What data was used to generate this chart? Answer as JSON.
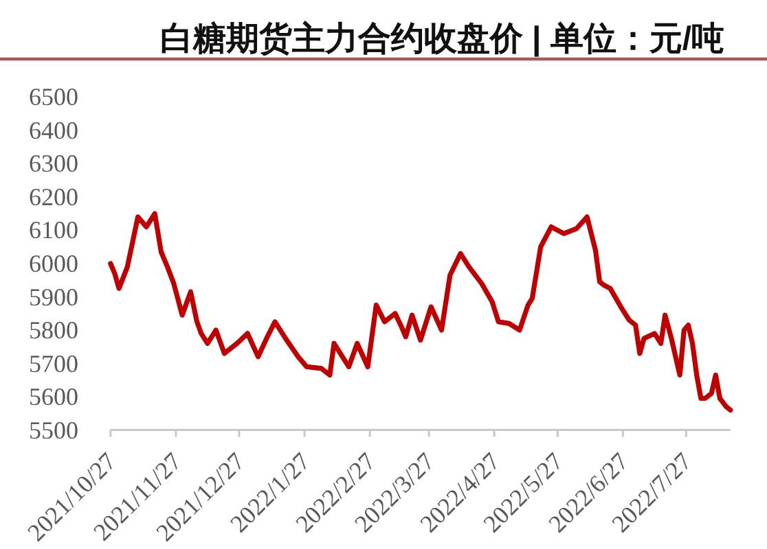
{
  "chart_data": {
    "type": "line",
    "title": "白糖期货主力合约收盘价 | 单位：元/吨",
    "x": [
      "2021-10-27",
      "2021-10-29",
      "2021-10-31",
      "2021-11-04",
      "2021-11-09",
      "2021-11-13",
      "2021-11-17",
      "2021-11-20",
      "2021-11-23",
      "2021-11-26",
      "2021-11-30",
      "2021-12-04",
      "2021-12-07",
      "2021-12-09",
      "2021-12-12",
      "2021-12-16",
      "2021-12-20",
      "2021-12-26",
      "2021-12-31",
      "2022-01-05",
      "2022-01-09",
      "2022-01-13",
      "2022-01-18",
      "2022-01-24",
      "2022-01-28",
      "2022-02-04",
      "2022-02-08",
      "2022-02-10",
      "2022-02-17",
      "2022-02-21",
      "2022-02-26",
      "2022-03-02",
      "2022-03-06",
      "2022-03-11",
      "2022-03-14",
      "2022-03-16",
      "2022-03-19",
      "2022-03-23",
      "2022-03-28",
      "2022-04-02",
      "2022-04-06",
      "2022-04-11",
      "2022-04-15",
      "2022-04-21",
      "2022-04-26",
      "2022-04-29",
      "2022-05-04",
      "2022-05-09",
      "2022-05-13",
      "2022-05-15",
      "2022-05-19",
      "2022-05-24",
      "2022-05-30",
      "2022-06-05",
      "2022-06-10",
      "2022-06-14",
      "2022-06-16",
      "2022-06-18",
      "2022-06-21",
      "2022-06-26",
      "2022-06-30",
      "2022-07-03",
      "2022-07-05",
      "2022-07-07",
      "2022-07-12",
      "2022-07-15",
      "2022-07-17",
      "2022-07-20",
      "2022-07-24",
      "2022-07-26",
      "2022-07-28",
      "2022-07-30",
      "2022-08-01",
      "2022-08-03",
      "2022-08-05",
      "2022-08-08",
      "2022-08-10",
      "2022-08-12",
      "2022-08-15",
      "2022-08-17"
    ],
    "series": [
      {
        "color": "#c00000",
        "values": [
          6000,
          5970,
          5925,
          5990,
          6140,
          6110,
          6150,
          6035,
          5990,
          5940,
          5845,
          5915,
          5825,
          5790,
          5760,
          5800,
          5730,
          5760,
          5790,
          5720,
          5775,
          5825,
          5775,
          5720,
          5690,
          5685,
          5665,
          5760,
          5690,
          5760,
          5690,
          5875,
          5825,
          5850,
          5810,
          5780,
          5845,
          5770,
          5870,
          5800,
          5965,
          6030,
          5990,
          5940,
          5885,
          5825,
          5820,
          5800,
          5875,
          5895,
          6050,
          6110,
          6090,
          6105,
          6140,
          6040,
          5945,
          5935,
          5925,
          5870,
          5830,
          5815,
          5730,
          5775,
          5790,
          5760,
          5845,
          5775,
          5665,
          5800,
          5815,
          5760,
          5665,
          5595,
          5595,
          5610,
          5665,
          5595,
          5570,
          5560
        ]
      }
    ],
    "xlim": [
      "2021-10-27",
      "2022-08-17"
    ],
    "xticks": [
      {
        "value": "2021-10-27",
        "label": "2021/10/27"
      },
      {
        "value": "2021-11-27",
        "label": "2021/11/27"
      },
      {
        "value": "2021-12-27",
        "label": "2021/12/27"
      },
      {
        "value": "2022-01-27",
        "label": "2022/1/27"
      },
      {
        "value": "2022-02-27",
        "label": "2022/2/27"
      },
      {
        "value": "2022-03-27",
        "label": "2022/3/27"
      },
      {
        "value": "2022-04-27",
        "label": "2022/4/27"
      },
      {
        "value": "2022-05-27",
        "label": "2022/5/27"
      },
      {
        "value": "2022-06-27",
        "label": "2022/6/27"
      },
      {
        "value": "2022-07-27",
        "label": "2022/7/27"
      }
    ],
    "ylim": [
      5500,
      6500
    ],
    "yticks": [
      5500,
      5600,
      5700,
      5800,
      5900,
      6000,
      6100,
      6200,
      6300,
      6400,
      6500
    ],
    "line_style": "solid"
  }
}
